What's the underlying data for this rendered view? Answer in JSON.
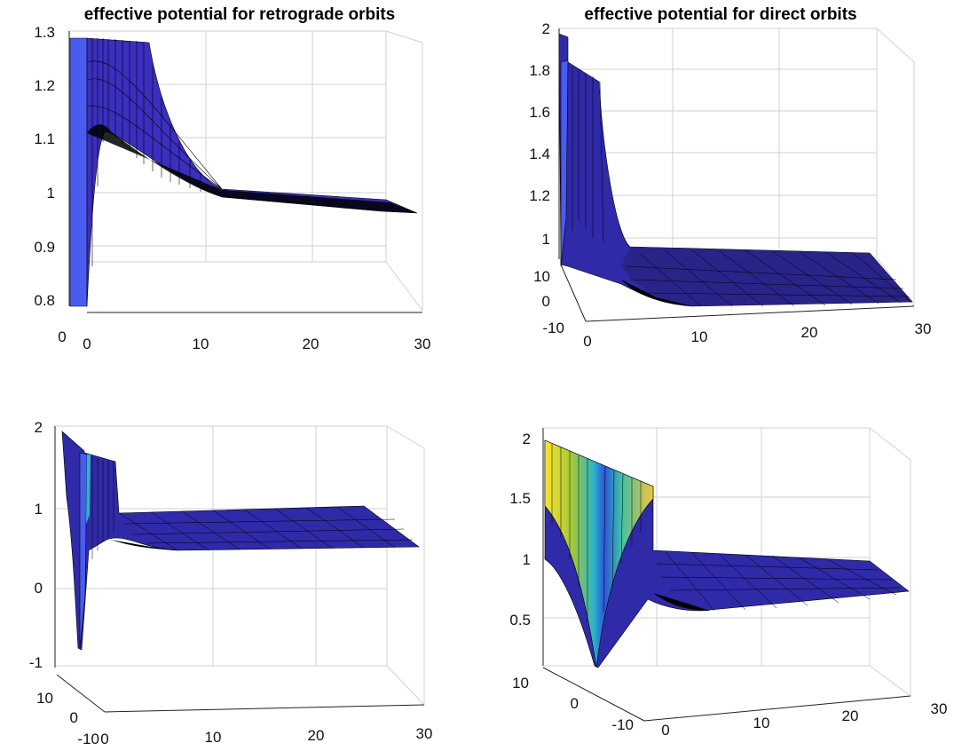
{
  "chart_data": [
    {
      "type": "surface",
      "title": "effective potential for retrograde orbits",
      "view": "side",
      "xlim": [
        0,
        30
      ],
      "zlim": [
        0.8,
        1.3
      ],
      "x_ticks": [
        "0",
        "10",
        "20",
        "30"
      ],
      "y_ticks": [
        "0"
      ],
      "z_ticks": [
        "0.8",
        "0.9",
        "1",
        "1.1",
        "1.2",
        "1.3"
      ],
      "profile": {
        "x": [
          0.5,
          1,
          2,
          3,
          4,
          5,
          6,
          8,
          10,
          12,
          15,
          20,
          25,
          30
        ],
        "z": [
          0.8,
          1.05,
          1.11,
          1.1,
          1.08,
          1.06,
          1.04,
          1.015,
          1.0,
          0.99,
          0.985,
          0.98,
          0.975,
          0.97
        ]
      },
      "colormap": "parula"
    },
    {
      "type": "surface",
      "title": "effective potential for direct orbits",
      "view": "oblique",
      "xlim": [
        0,
        30
      ],
      "ylim": [
        -10,
        10
      ],
      "zlim": [
        0.8,
        2
      ],
      "x_ticks": [
        "0",
        "10",
        "20",
        "30"
      ],
      "y_ticks": [
        "-10",
        "0",
        "10"
      ],
      "z_ticks": [
        "1",
        "1.2",
        "1.4",
        "1.6",
        "1.8",
        "2"
      ],
      "profile": {
        "x": [
          0.5,
          1,
          2,
          3,
          4,
          5,
          6,
          8,
          10,
          15,
          20,
          25,
          30
        ],
        "z": [
          1.9,
          1.75,
          1.45,
          1.2,
          1.05,
          0.97,
          0.93,
          0.9,
          0.88,
          0.87,
          0.86,
          0.86,
          0.86
        ]
      },
      "colormap": "parula"
    },
    {
      "type": "surface",
      "title": "",
      "view": "oblique",
      "xlim": [
        0,
        30
      ],
      "ylim": [
        -10,
        10
      ],
      "zlim": [
        -1,
        2
      ],
      "x_ticks": [
        "0",
        "10",
        "20",
        "30"
      ],
      "y_ticks": [
        "-10",
        "0",
        "10"
      ],
      "z_ticks": [
        "-1",
        "0",
        "1",
        "2"
      ],
      "profile": {
        "x": [
          0.5,
          1,
          2,
          3,
          4,
          5,
          6,
          8,
          10,
          15,
          20,
          25,
          30
        ],
        "z": [
          -0.7,
          0.5,
          0.9,
          0.85,
          0.8,
          0.72,
          0.65,
          0.6,
          0.58,
          0.55,
          0.55,
          0.55,
          0.55
        ]
      },
      "colormap": "parula"
    },
    {
      "type": "surface",
      "title": "",
      "view": "oblique",
      "xlim": [
        0,
        30
      ],
      "ylim": [
        -10,
        10
      ],
      "zlim": [
        0.3,
        2
      ],
      "x_ticks": [
        "0",
        "10",
        "20",
        "30"
      ],
      "y_ticks": [
        "-10",
        "0",
        "10"
      ],
      "z_ticks": [
        "0.5",
        "1",
        "1.5",
        "2"
      ],
      "profile": {
        "x": [
          0.5,
          1,
          2,
          3,
          4,
          5,
          6,
          8,
          10,
          15,
          20,
          25,
          30
        ],
        "z": [
          0.3,
          0.55,
          0.65,
          0.7,
          0.72,
          0.73,
          0.73,
          0.74,
          0.74,
          0.75,
          0.75,
          0.75,
          0.75
        ]
      },
      "colormap": "parula"
    }
  ]
}
